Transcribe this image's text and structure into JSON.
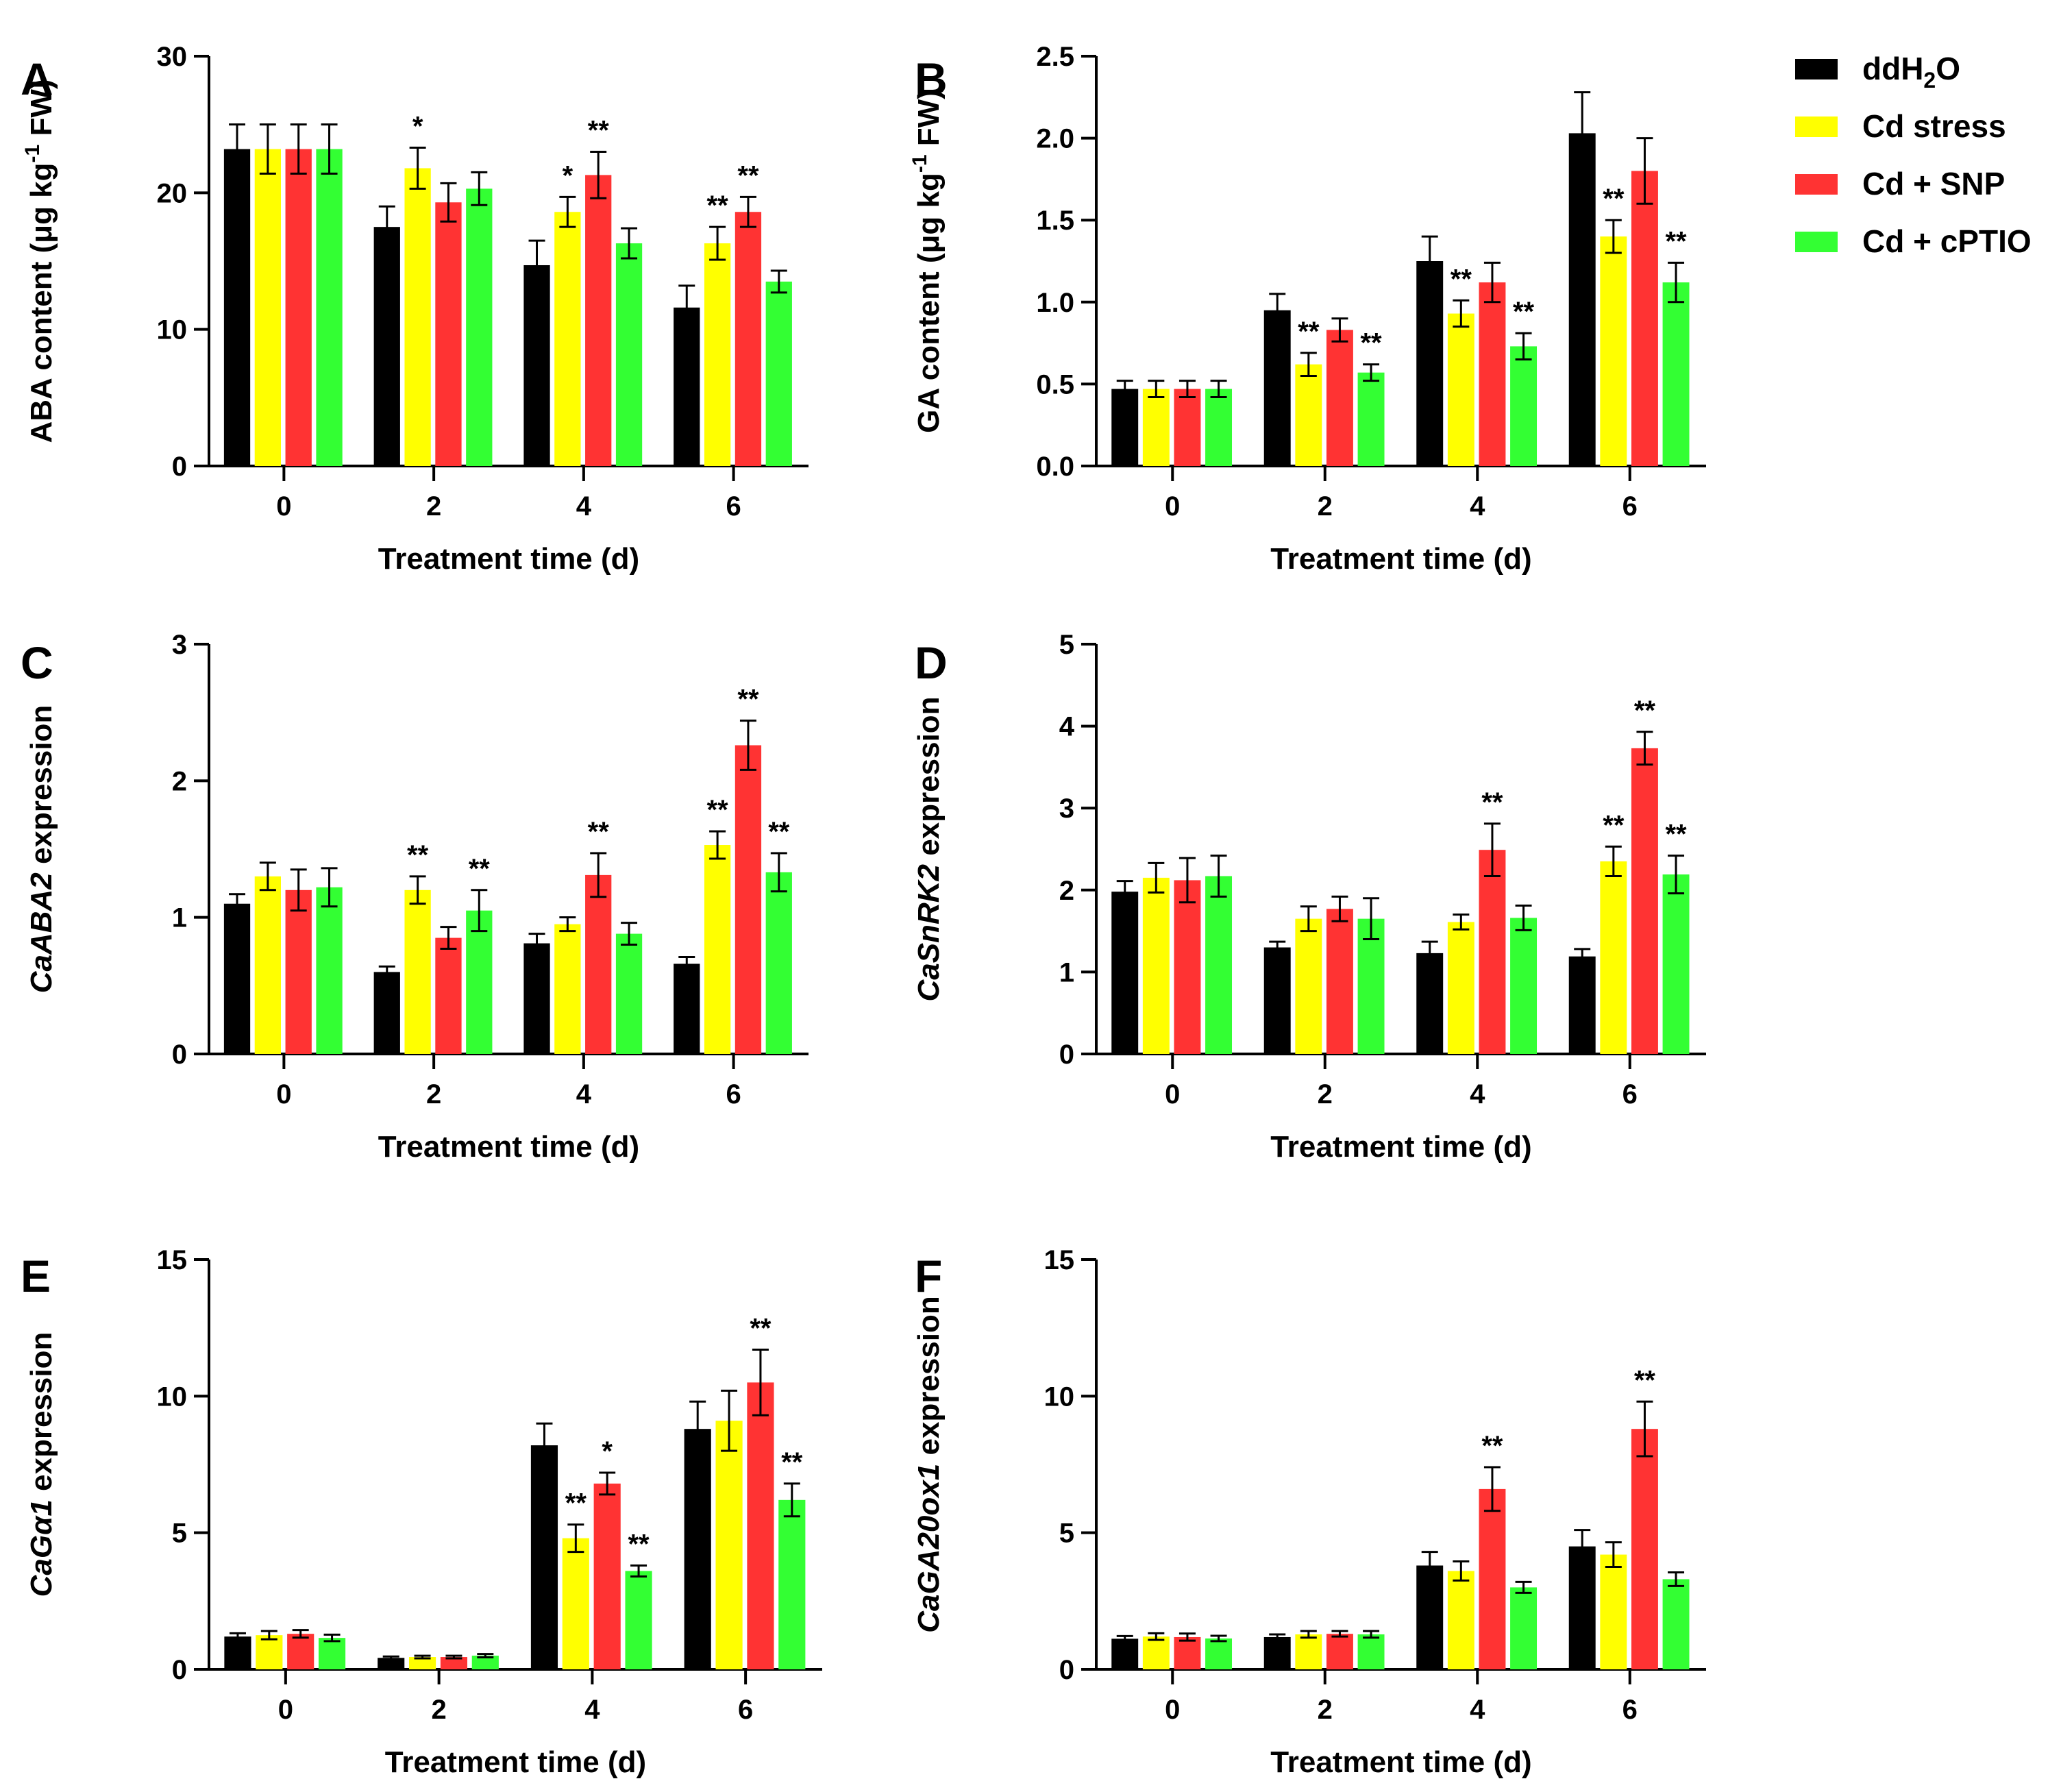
{
  "legend": {
    "items": [
      {
        "label": "ddH2O",
        "base": "ddH",
        "sub": "2",
        "tail": "O",
        "color": "#000000"
      },
      {
        "label": "Cd stress",
        "color": "#ffff00"
      },
      {
        "label": "Cd + SNP",
        "color": "#ff3333"
      },
      {
        "label": "Cd + cPTIO",
        "color": "#33ff33"
      }
    ]
  },
  "chart_data": [
    {
      "type": "bar",
      "letter": "A",
      "ylabel": "ABA content (μg kg-1 FW)",
      "ylabel_parts": {
        "pre": "ABA content (μg kg",
        "sup": "-1",
        "post": " FW)"
      },
      "ylabel_italic": false,
      "xlabel": "Treatment time (d)",
      "categories": [
        "0",
        "2",
        "4",
        "6"
      ],
      "ylim": [
        0,
        30
      ],
      "yticks": [
        "0",
        "10",
        "20",
        "30"
      ],
      "series": [
        {
          "name": "ddH2O",
          "values": [
            23.2,
            17.5,
            14.7,
            11.6
          ],
          "errors": [
            1.8,
            1.5,
            1.8,
            1.6
          ],
          "sig": [
            "",
            "",
            "",
            ""
          ]
        },
        {
          "name": "Cd stress",
          "values": [
            23.2,
            21.8,
            18.6,
            16.3
          ],
          "errors": [
            1.8,
            1.5,
            1.1,
            1.2
          ],
          "sig": [
            "",
            "*",
            "*",
            "**"
          ]
        },
        {
          "name": "Cd + SNP",
          "values": [
            23.2,
            19.3,
            21.3,
            18.6
          ],
          "errors": [
            1.8,
            1.4,
            1.7,
            1.1
          ],
          "sig": [
            "",
            "",
            "**",
            "**"
          ]
        },
        {
          "name": "Cd + cPTIO",
          "values": [
            23.2,
            20.3,
            16.3,
            13.5
          ],
          "errors": [
            1.8,
            1.2,
            1.1,
            0.8
          ],
          "sig": [
            "",
            "",
            "",
            ""
          ]
        }
      ]
    },
    {
      "type": "bar",
      "letter": "B",
      "ylabel": "GA content (μg kg-1 FW)",
      "ylabel_parts": {
        "pre": "GA content (μg kg",
        "sup": "-1",
        "post": " FW)"
      },
      "ylabel_italic": false,
      "xlabel": "Treatment time (d)",
      "categories": [
        "0",
        "2",
        "4",
        "6"
      ],
      "ylim": [
        0,
        2.5
      ],
      "yticks": [
        "0.0",
        "0.5",
        "1.0",
        "1.5",
        "2.0",
        "2.5"
      ],
      "series": [
        {
          "name": "ddH2O",
          "values": [
            0.47,
            0.95,
            1.25,
            2.03
          ],
          "errors": [
            0.05,
            0.1,
            0.15,
            0.25
          ],
          "sig": [
            "",
            "",
            "",
            ""
          ]
        },
        {
          "name": "Cd stress",
          "values": [
            0.47,
            0.62,
            0.93,
            1.4
          ],
          "errors": [
            0.05,
            0.07,
            0.08,
            0.1
          ],
          "sig": [
            "",
            "**",
            "**",
            "**"
          ]
        },
        {
          "name": "Cd + SNP",
          "values": [
            0.47,
            0.83,
            1.12,
            1.8
          ],
          "errors": [
            0.05,
            0.07,
            0.12,
            0.2
          ],
          "sig": [
            "",
            "",
            "",
            ""
          ]
        },
        {
          "name": "Cd + cPTIO",
          "values": [
            0.47,
            0.57,
            0.73,
            1.12
          ],
          "errors": [
            0.05,
            0.05,
            0.08,
            0.12
          ],
          "sig": [
            "",
            "**",
            "**",
            "**"
          ]
        }
      ]
    },
    {
      "type": "bar",
      "letter": "C",
      "ylabel": "CaABA2 expression",
      "ylabel_parts": {
        "pre": "CaABA2",
        "sup": "",
        "post": " expression"
      },
      "ylabel_italic": true,
      "xlabel": "Treatment time (d)",
      "categories": [
        "0",
        "2",
        "4",
        "6"
      ],
      "ylim": [
        0,
        3
      ],
      "yticks": [
        "0",
        "1",
        "2",
        "3"
      ],
      "series": [
        {
          "name": "ddH2O",
          "values": [
            1.1,
            0.6,
            0.81,
            0.66
          ],
          "errors": [
            0.07,
            0.04,
            0.07,
            0.05
          ],
          "sig": [
            "",
            "",
            "",
            ""
          ]
        },
        {
          "name": "Cd stress",
          "values": [
            1.3,
            1.2,
            0.95,
            1.53
          ],
          "errors": [
            0.1,
            0.1,
            0.05,
            0.1
          ],
          "sig": [
            "",
            "**",
            "",
            "**"
          ]
        },
        {
          "name": "Cd + SNP",
          "values": [
            1.2,
            0.85,
            1.31,
            2.26
          ],
          "errors": [
            0.15,
            0.08,
            0.16,
            0.18
          ],
          "sig": [
            "",
            "",
            "**",
            "**"
          ]
        },
        {
          "name": "Cd + cPTIO",
          "values": [
            1.22,
            1.05,
            0.88,
            1.33
          ],
          "errors": [
            0.14,
            0.15,
            0.08,
            0.14
          ],
          "sig": [
            "",
            "**",
            "",
            "**"
          ]
        }
      ]
    },
    {
      "type": "bar",
      "letter": "D",
      "ylabel": "CaSnRK2 expression",
      "ylabel_parts": {
        "pre": "CaSnRK2",
        "sup": "",
        "post": " expression"
      },
      "ylabel_italic": true,
      "xlabel": "Treatment time (d)",
      "categories": [
        "0",
        "2",
        "4",
        "6"
      ],
      "ylim": [
        0,
        5
      ],
      "yticks": [
        "0",
        "1",
        "2",
        "3",
        "4",
        "5"
      ],
      "series": [
        {
          "name": "ddH2O",
          "values": [
            1.98,
            1.3,
            1.23,
            1.19
          ],
          "errors": [
            0.13,
            0.07,
            0.14,
            0.09
          ],
          "sig": [
            "",
            "",
            "",
            ""
          ]
        },
        {
          "name": "Cd stress",
          "values": [
            2.15,
            1.65,
            1.61,
            2.35
          ],
          "errors": [
            0.18,
            0.15,
            0.09,
            0.18
          ],
          "sig": [
            "",
            "",
            "",
            "**"
          ]
        },
        {
          "name": "Cd + SNP",
          "values": [
            2.12,
            1.77,
            2.49,
            3.73
          ],
          "errors": [
            0.27,
            0.15,
            0.32,
            0.2
          ],
          "sig": [
            "",
            "",
            "**",
            "**"
          ]
        },
        {
          "name": "Cd + cPTIO",
          "values": [
            2.17,
            1.65,
            1.66,
            2.19
          ],
          "errors": [
            0.25,
            0.25,
            0.15,
            0.23
          ],
          "sig": [
            "",
            "",
            "",
            "**"
          ]
        }
      ]
    },
    {
      "type": "bar",
      "letter": "E",
      "ylabel": "CaGα1 expression",
      "ylabel_parts": {
        "pre": "CaGα1",
        "sup": "",
        "post": " expression"
      },
      "ylabel_italic": true,
      "xlabel": "Treatment time (d)",
      "categories": [
        "0",
        "2",
        "4",
        "6"
      ],
      "ylim": [
        0,
        15
      ],
      "yticks": [
        "0",
        "5",
        "10",
        "15"
      ],
      "series": [
        {
          "name": "ddH2O",
          "values": [
            1.2,
            0.42,
            8.2,
            8.8
          ],
          "errors": [
            0.12,
            0.05,
            0.8,
            1.0
          ],
          "sig": [
            "",
            "",
            "",
            ""
          ]
        },
        {
          "name": "Cd stress",
          "values": [
            1.25,
            0.45,
            4.8,
            9.1
          ],
          "errors": [
            0.15,
            0.05,
            0.5,
            1.1
          ],
          "sig": [
            "",
            "",
            "**",
            ""
          ]
        },
        {
          "name": "Cd + SNP",
          "values": [
            1.3,
            0.45,
            6.8,
            10.5
          ],
          "errors": [
            0.14,
            0.05,
            0.4,
            1.2
          ],
          "sig": [
            "",
            "",
            "*",
            "**"
          ]
        },
        {
          "name": "Cd + cPTIO",
          "values": [
            1.15,
            0.5,
            3.6,
            6.2
          ],
          "errors": [
            0.12,
            0.06,
            0.2,
            0.6
          ],
          "sig": [
            "",
            "",
            "**",
            "**"
          ]
        }
      ]
    },
    {
      "type": "bar",
      "letter": "F",
      "ylabel": "CaGA20ox1 expression",
      "ylabel_parts": {
        "pre": "CaGA20ox1",
        "sup": "",
        "post": " expression"
      },
      "ylabel_italic": true,
      "xlabel": "Treatment time (d)",
      "categories": [
        "0",
        "2",
        "4",
        "6"
      ],
      "ylim": [
        0,
        15
      ],
      "yticks": [
        "0",
        "5",
        "10",
        "15"
      ],
      "series": [
        {
          "name": "ddH2O",
          "values": [
            1.12,
            1.18,
            3.8,
            4.5
          ],
          "errors": [
            0.1,
            0.1,
            0.5,
            0.6
          ],
          "sig": [
            "",
            "",
            "",
            ""
          ]
        },
        {
          "name": "Cd stress",
          "values": [
            1.2,
            1.28,
            3.6,
            4.2
          ],
          "errors": [
            0.12,
            0.12,
            0.35,
            0.45
          ],
          "sig": [
            "",
            "",
            "",
            ""
          ]
        },
        {
          "name": "Cd + SNP",
          "values": [
            1.18,
            1.3,
            6.6,
            8.8
          ],
          "errors": [
            0.13,
            0.1,
            0.8,
            1.0
          ],
          "sig": [
            "",
            "",
            "**",
            "**"
          ]
        },
        {
          "name": "Cd + cPTIO",
          "values": [
            1.13,
            1.28,
            3.0,
            3.3
          ],
          "errors": [
            0.1,
            0.12,
            0.2,
            0.25
          ],
          "sig": [
            "",
            "",
            "",
            ""
          ]
        }
      ]
    }
  ]
}
